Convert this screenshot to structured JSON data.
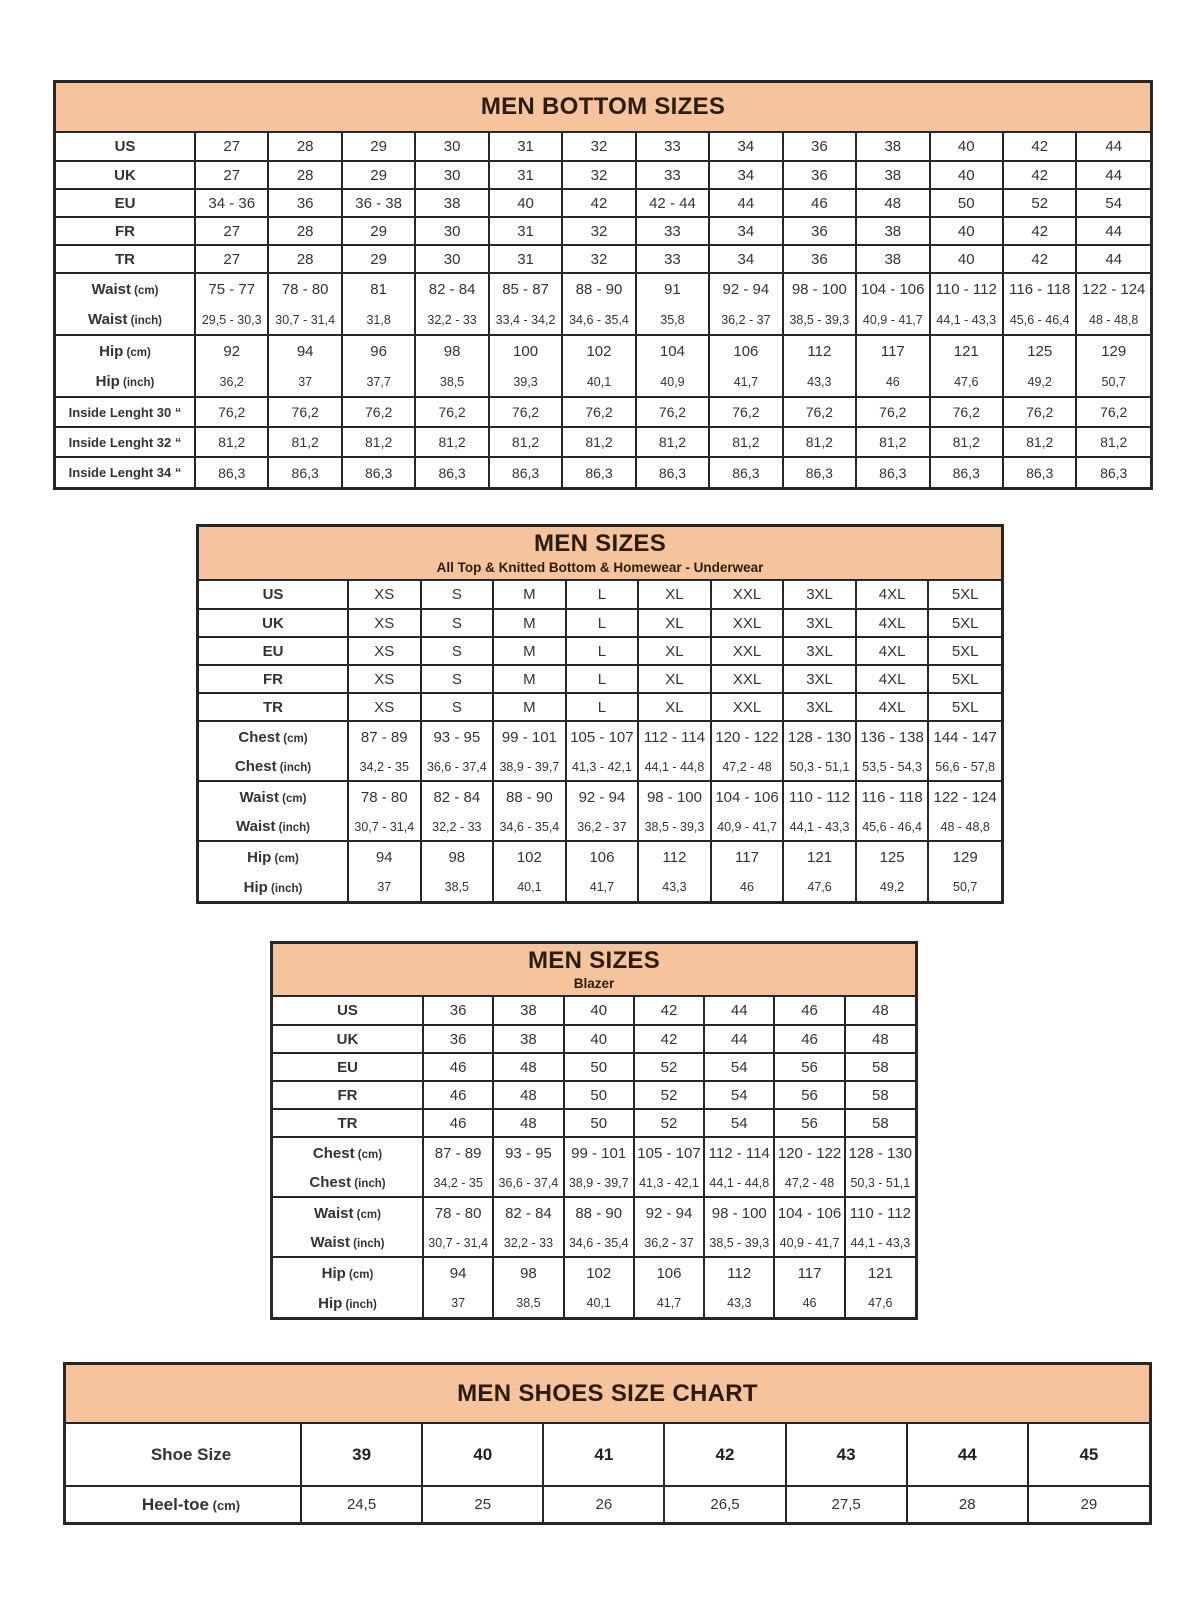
{
  "page_title": "Men size charts",
  "colors": {
    "header_fill": "#F6C49C",
    "border": "#262626",
    "title_text": "#2a1d10",
    "body_text": "#333333"
  },
  "tables": [
    {
      "name": "men-bottom-sizes",
      "title": "MEN BOTTOM SIZES",
      "subtitle": "",
      "rows": [
        {
          "kind": "size",
          "label": "US",
          "unit": "",
          "values": [
            "27",
            "28",
            "29",
            "30",
            "31",
            "32",
            "33",
            "34",
            "36",
            "38",
            "40",
            "42",
            "44"
          ]
        },
        {
          "kind": "size",
          "label": "UK",
          "unit": "",
          "values": [
            "27",
            "28",
            "29",
            "30",
            "31",
            "32",
            "33",
            "34",
            "36",
            "38",
            "40",
            "42",
            "44"
          ]
        },
        {
          "kind": "size",
          "label": "EU",
          "unit": "",
          "values": [
            "34 - 36",
            "36",
            "36 - 38",
            "38",
            "40",
            "42",
            "42 - 44",
            "44",
            "46",
            "48",
            "50",
            "52",
            "54"
          ]
        },
        {
          "kind": "size",
          "label": "FR",
          "unit": "",
          "values": [
            "27",
            "28",
            "29",
            "30",
            "31",
            "32",
            "33",
            "34",
            "36",
            "38",
            "40",
            "42",
            "44"
          ]
        },
        {
          "kind": "size",
          "label": "TR",
          "unit": "",
          "values": [
            "27",
            "28",
            "29",
            "30",
            "31",
            "32",
            "33",
            "34",
            "36",
            "38",
            "40",
            "42",
            "44"
          ]
        },
        {
          "kind": "cm",
          "label": "Waist",
          "unit": "(cm)",
          "values": [
            "75 - 77",
            "78 - 80",
            "81",
            "82 - 84",
            "85 - 87",
            "88 - 90",
            "91",
            "92 - 94",
            "98 - 100",
            "104 - 106",
            "110 - 112",
            "116 - 118",
            "122 - 124"
          ]
        },
        {
          "kind": "inch",
          "label": "Waist",
          "unit": "(inch)",
          "values": [
            "29,5 - 30,3",
            "30,7 - 31,4",
            "31,8",
            "32,2 - 33",
            "33,4 - 34,2",
            "34,6 - 35,4",
            "35,8",
            "36,2 - 37",
            "38,5 - 39,3",
            "40,9 - 41,7",
            "44,1 - 43,3",
            "45,6 - 46,4",
            "48 - 48,8"
          ]
        },
        {
          "kind": "cm",
          "label": "Hip",
          "unit": "(cm)",
          "values": [
            "92",
            "94",
            "96",
            "98",
            "100",
            "102",
            "104",
            "106",
            "112",
            "117",
            "121",
            "125",
            "129"
          ]
        },
        {
          "kind": "inch",
          "label": "Hip",
          "unit": "(inch)",
          "values": [
            "36,2",
            "37",
            "37,7",
            "38,5",
            "39,3",
            "40,1",
            "40,9",
            "41,7",
            "43,3",
            "46",
            "47,6",
            "49,2",
            "50,7"
          ]
        },
        {
          "kind": "single",
          "label": "Inside Lenght 30 “",
          "unit": "",
          "values": [
            "76,2",
            "76,2",
            "76,2",
            "76,2",
            "76,2",
            "76,2",
            "76,2",
            "76,2",
            "76,2",
            "76,2",
            "76,2",
            "76,2",
            "76,2"
          ]
        },
        {
          "kind": "single",
          "label": "Inside Lenght 32 “",
          "unit": "",
          "values": [
            "81,2",
            "81,2",
            "81,2",
            "81,2",
            "81,2",
            "81,2",
            "81,2",
            "81,2",
            "81,2",
            "81,2",
            "81,2",
            "81,2",
            "81,2"
          ]
        },
        {
          "kind": "single",
          "label": "Inside Lenght 34 “",
          "unit": "",
          "values": [
            "86,3",
            "86,3",
            "86,3",
            "86,3",
            "86,3",
            "86,3",
            "86,3",
            "86,3",
            "86,3",
            "86,3",
            "86,3",
            "86,3",
            "86,3"
          ]
        }
      ]
    },
    {
      "name": "men-sizes-tops",
      "title": "MEN SIZES",
      "subtitle": "All Top & Knitted Bottom & Homewear - Underwear",
      "rows": [
        {
          "kind": "size",
          "label": "US",
          "unit": "",
          "values": [
            "XS",
            "S",
            "M",
            "L",
            "XL",
            "XXL",
            "3XL",
            "4XL",
            "5XL"
          ]
        },
        {
          "kind": "size",
          "label": "UK",
          "unit": "",
          "values": [
            "XS",
            "S",
            "M",
            "L",
            "XL",
            "XXL",
            "3XL",
            "4XL",
            "5XL"
          ]
        },
        {
          "kind": "size",
          "label": "EU",
          "unit": "",
          "values": [
            "XS",
            "S",
            "M",
            "L",
            "XL",
            "XXL",
            "3XL",
            "4XL",
            "5XL"
          ]
        },
        {
          "kind": "size",
          "label": "FR",
          "unit": "",
          "values": [
            "XS",
            "S",
            "M",
            "L",
            "XL",
            "XXL",
            "3XL",
            "4XL",
            "5XL"
          ]
        },
        {
          "kind": "size",
          "label": "TR",
          "unit": "",
          "values": [
            "XS",
            "S",
            "M",
            "L",
            "XL",
            "XXL",
            "3XL",
            "4XL",
            "5XL"
          ]
        },
        {
          "kind": "cm",
          "label": "Chest",
          "unit": "(cm)",
          "values": [
            "87 - 89",
            "93 - 95",
            "99 - 101",
            "105 - 107",
            "112 - 114",
            "120 - 122",
            "128 - 130",
            "136 - 138",
            "144 - 147"
          ]
        },
        {
          "kind": "inch",
          "label": "Chest",
          "unit": "(inch)",
          "values": [
            "34,2 - 35",
            "36,6 - 37,4",
            "38,9 - 39,7",
            "41,3 - 42,1",
            "44,1 - 44,8",
            "47,2 - 48",
            "50,3 - 51,1",
            "53,5 - 54,3",
            "56,6 - 57,8"
          ]
        },
        {
          "kind": "cm",
          "label": "Waist",
          "unit": "(cm)",
          "values": [
            "78 - 80",
            "82 - 84",
            "88 - 90",
            "92 - 94",
            "98 - 100",
            "104 - 106",
            "110 - 112",
            "116 - 118",
            "122 - 124"
          ]
        },
        {
          "kind": "inch",
          "label": "Waist",
          "unit": "(inch)",
          "values": [
            "30,7 - 31,4",
            "32,2 - 33",
            "34,6 - 35,4",
            "36,2 - 37",
            "38,5 - 39,3",
            "40,9 - 41,7",
            "44,1 - 43,3",
            "45,6 - 46,4",
            "48 - 48,8"
          ]
        },
        {
          "kind": "cm",
          "label": "Hip",
          "unit": "(cm)",
          "values": [
            "94",
            "98",
            "102",
            "106",
            "112",
            "117",
            "121",
            "125",
            "129"
          ]
        },
        {
          "kind": "inch",
          "label": "Hip",
          "unit": "(inch)",
          "values": [
            "37",
            "38,5",
            "40,1",
            "41,7",
            "43,3",
            "46",
            "47,6",
            "49,2",
            "50,7"
          ]
        }
      ]
    },
    {
      "name": "men-sizes-blazer",
      "title": "MEN SIZES",
      "subtitle": "Blazer",
      "rows": [
        {
          "kind": "size",
          "label": "US",
          "unit": "",
          "values": [
            "36",
            "38",
            "40",
            "42",
            "44",
            "46",
            "48"
          ]
        },
        {
          "kind": "size",
          "label": "UK",
          "unit": "",
          "values": [
            "36",
            "38",
            "40",
            "42",
            "44",
            "46",
            "48"
          ]
        },
        {
          "kind": "size",
          "label": "EU",
          "unit": "",
          "values": [
            "46",
            "48",
            "50",
            "52",
            "54",
            "56",
            "58"
          ]
        },
        {
          "kind": "size",
          "label": "FR",
          "unit": "",
          "values": [
            "46",
            "48",
            "50",
            "52",
            "54",
            "56",
            "58"
          ]
        },
        {
          "kind": "size",
          "label": "TR",
          "unit": "",
          "values": [
            "46",
            "48",
            "50",
            "52",
            "54",
            "56",
            "58"
          ]
        },
        {
          "kind": "cm",
          "label": "Chest",
          "unit": "(cm)",
          "values": [
            "87 - 89",
            "93 - 95",
            "99 - 101",
            "105 - 107",
            "112 - 114",
            "120 - 122",
            "128 - 130"
          ]
        },
        {
          "kind": "inch",
          "label": "Chest",
          "unit": "(inch)",
          "values": [
            "34,2 - 35",
            "36,6 - 37,4",
            "38,9 - 39,7",
            "41,3 - 42,1",
            "44,1 - 44,8",
            "47,2 - 48",
            "50,3 - 51,1"
          ]
        },
        {
          "kind": "cm",
          "label": "Waist",
          "unit": "(cm)",
          "values": [
            "78 - 80",
            "82 - 84",
            "88 - 90",
            "92 - 94",
            "98 - 100",
            "104 - 106",
            "110 - 112"
          ]
        },
        {
          "kind": "inch",
          "label": "Waist",
          "unit": "(inch)",
          "values": [
            "30,7 - 31,4",
            "32,2 - 33",
            "34,6 - 35,4",
            "36,2 - 37",
            "38,5 - 39,3",
            "40,9 - 41,7",
            "44,1 - 43,3"
          ]
        },
        {
          "kind": "cm",
          "label": "Hip",
          "unit": "(cm)",
          "values": [
            "94",
            "98",
            "102",
            "106",
            "112",
            "117",
            "121"
          ]
        },
        {
          "kind": "inch",
          "label": "Hip",
          "unit": "(inch)",
          "values": [
            "37",
            "38,5",
            "40,1",
            "41,7",
            "43,3",
            "46",
            "47,6"
          ]
        }
      ]
    },
    {
      "name": "men-shoes-size-chart",
      "title": "MEN SHOES SIZE CHART",
      "subtitle": "",
      "rows": [
        {
          "kind": "shoe",
          "label": "Shoe Size",
          "unit": "",
          "values": [
            "39",
            "40",
            "41",
            "42",
            "43",
            "44",
            "45"
          ]
        },
        {
          "kind": "heel",
          "label": "Heel-toe",
          "unit": "(cm)",
          "values": [
            "24,5",
            "25",
            "26",
            "26,5",
            "27,5",
            "28",
            "29"
          ]
        }
      ]
    }
  ]
}
